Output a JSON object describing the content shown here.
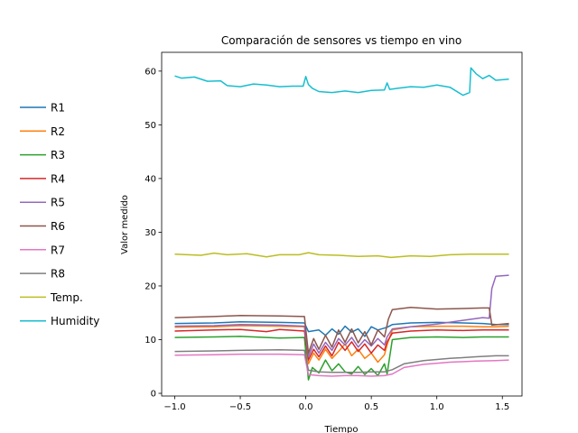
{
  "chart_data": {
    "type": "line",
    "title": "Comparación de sensores vs tiempo en vino",
    "xlabel": "Tiempo",
    "ylabel": "Valor medido",
    "xlim": [
      -1.1,
      1.65
    ],
    "ylim": [
      -0.5,
      63.5
    ],
    "xticks": [
      -1.0,
      -0.5,
      0.0,
      0.5,
      1.0,
      1.5
    ],
    "xtick_labels": [
      "−1.0",
      "−0.5",
      "0.0",
      "0.5",
      "1.0",
      "1.5"
    ],
    "yticks": [
      0,
      10,
      20,
      30,
      40,
      50,
      60
    ],
    "ytick_labels": [
      "0",
      "10",
      "20",
      "30",
      "40",
      "50",
      "60"
    ],
    "grid": false,
    "legend_position": "left, outside plot",
    "series": [
      {
        "name": "R1",
        "color": "#1f77b4",
        "points": [
          [
            -1.0,
            13.0
          ],
          [
            -0.7,
            13.1
          ],
          [
            -0.5,
            13.3
          ],
          [
            -0.2,
            13.2
          ],
          [
            -0.01,
            13.1
          ],
          [
            0.02,
            11.5
          ],
          [
            0.1,
            11.8
          ],
          [
            0.15,
            10.8
          ],
          [
            0.2,
            12.0
          ],
          [
            0.25,
            11.0
          ],
          [
            0.3,
            12.5
          ],
          [
            0.35,
            11.4
          ],
          [
            0.4,
            12.0
          ],
          [
            0.45,
            10.6
          ],
          [
            0.5,
            12.4
          ],
          [
            0.55,
            11.8
          ],
          [
            0.62,
            12.3
          ],
          [
            0.66,
            12.8
          ],
          [
            0.8,
            13.1
          ],
          [
            1.0,
            13.2
          ],
          [
            1.2,
            13.1
          ],
          [
            1.35,
            13.0
          ],
          [
            1.45,
            12.8
          ],
          [
            1.55,
            12.8
          ]
        ]
      },
      {
        "name": "R2",
        "color": "#ff7f0e",
        "points": [
          [
            -1.0,
            12.3
          ],
          [
            -0.7,
            12.4
          ],
          [
            -0.5,
            12.6
          ],
          [
            -0.2,
            12.5
          ],
          [
            -0.01,
            12.4
          ],
          [
            0.02,
            5.5
          ],
          [
            0.06,
            7.5
          ],
          [
            0.1,
            6.2
          ],
          [
            0.15,
            8.2
          ],
          [
            0.2,
            6.5
          ],
          [
            0.25,
            7.8
          ],
          [
            0.3,
            9.2
          ],
          [
            0.35,
            7.0
          ],
          [
            0.4,
            8.2
          ],
          [
            0.45,
            6.5
          ],
          [
            0.5,
            7.5
          ],
          [
            0.55,
            5.8
          ],
          [
            0.6,
            7.2
          ],
          [
            0.62,
            9.0
          ],
          [
            0.66,
            11.8
          ],
          [
            0.8,
            12.4
          ],
          [
            1.0,
            12.5
          ],
          [
            1.2,
            12.5
          ],
          [
            1.35,
            12.4
          ],
          [
            1.45,
            12.4
          ],
          [
            1.55,
            12.5
          ]
        ]
      },
      {
        "name": "R3",
        "color": "#2ca02c",
        "points": [
          [
            -1.0,
            10.4
          ],
          [
            -0.7,
            10.5
          ],
          [
            -0.5,
            10.6
          ],
          [
            -0.2,
            10.3
          ],
          [
            -0.01,
            10.4
          ],
          [
            0.02,
            2.5
          ],
          [
            0.05,
            4.8
          ],
          [
            0.1,
            3.8
          ],
          [
            0.15,
            6.2
          ],
          [
            0.2,
            4.2
          ],
          [
            0.25,
            5.5
          ],
          [
            0.3,
            4.0
          ],
          [
            0.35,
            3.6
          ],
          [
            0.4,
            5.0
          ],
          [
            0.45,
            3.5
          ],
          [
            0.5,
            4.6
          ],
          [
            0.55,
            3.3
          ],
          [
            0.6,
            5.5
          ],
          [
            0.62,
            3.6
          ],
          [
            0.66,
            10.0
          ],
          [
            0.8,
            10.4
          ],
          [
            1.0,
            10.5
          ],
          [
            1.2,
            10.4
          ],
          [
            1.35,
            10.5
          ],
          [
            1.45,
            10.5
          ],
          [
            1.55,
            10.5
          ]
        ]
      },
      {
        "name": "R4",
        "color": "#d62728",
        "points": [
          [
            -1.0,
            11.6
          ],
          [
            -0.7,
            11.8
          ],
          [
            -0.5,
            11.9
          ],
          [
            -0.3,
            11.5
          ],
          [
            -0.2,
            11.9
          ],
          [
            -0.01,
            11.6
          ],
          [
            0.02,
            6.2
          ],
          [
            0.06,
            8.2
          ],
          [
            0.1,
            6.8
          ],
          [
            0.15,
            8.8
          ],
          [
            0.2,
            7.0
          ],
          [
            0.25,
            9.5
          ],
          [
            0.3,
            8.0
          ],
          [
            0.35,
            9.6
          ],
          [
            0.4,
            7.8
          ],
          [
            0.45,
            9.2
          ],
          [
            0.5,
            7.5
          ],
          [
            0.55,
            9.0
          ],
          [
            0.6,
            8.0
          ],
          [
            0.62,
            9.6
          ],
          [
            0.66,
            11.2
          ],
          [
            0.8,
            11.6
          ],
          [
            1.0,
            11.8
          ],
          [
            1.2,
            11.7
          ],
          [
            1.35,
            11.8
          ],
          [
            1.45,
            11.8
          ],
          [
            1.55,
            11.8
          ]
        ]
      },
      {
        "name": "R5",
        "color": "#9467bd",
        "points": [
          [
            -1.0,
            12.5
          ],
          [
            -0.7,
            12.6
          ],
          [
            -0.5,
            12.8
          ],
          [
            -0.2,
            12.7
          ],
          [
            -0.01,
            12.5
          ],
          [
            0.02,
            6.8
          ],
          [
            0.06,
            9.2
          ],
          [
            0.1,
            7.5
          ],
          [
            0.15,
            9.5
          ],
          [
            0.2,
            8.0
          ],
          [
            0.25,
            10.2
          ],
          [
            0.3,
            9.0
          ],
          [
            0.35,
            10.4
          ],
          [
            0.4,
            8.6
          ],
          [
            0.45,
            10.0
          ],
          [
            0.5,
            8.8
          ],
          [
            0.55,
            10.2
          ],
          [
            0.6,
            9.0
          ],
          [
            0.62,
            10.5
          ],
          [
            0.66,
            12.0
          ],
          [
            0.8,
            12.4
          ],
          [
            1.0,
            12.9
          ],
          [
            1.2,
            13.6
          ],
          [
            1.35,
            14.1
          ],
          [
            1.4,
            14.0
          ],
          [
            1.42,
            19.5
          ],
          [
            1.45,
            21.8
          ],
          [
            1.55,
            22.0
          ]
        ]
      },
      {
        "name": "R6",
        "color": "#8c564b",
        "points": [
          [
            -1.0,
            14.1
          ],
          [
            -0.7,
            14.3
          ],
          [
            -0.5,
            14.5
          ],
          [
            -0.2,
            14.4
          ],
          [
            -0.01,
            14.3
          ],
          [
            0.02,
            7.5
          ],
          [
            0.06,
            10.2
          ],
          [
            0.1,
            8.2
          ],
          [
            0.15,
            10.8
          ],
          [
            0.2,
            8.6
          ],
          [
            0.25,
            11.8
          ],
          [
            0.3,
            9.5
          ],
          [
            0.35,
            12.0
          ],
          [
            0.4,
            9.4
          ],
          [
            0.45,
            11.5
          ],
          [
            0.5,
            9.0
          ],
          [
            0.55,
            11.8
          ],
          [
            0.6,
            10.5
          ],
          [
            0.63,
            13.8
          ],
          [
            0.66,
            15.6
          ],
          [
            0.8,
            16.0
          ],
          [
            1.0,
            15.7
          ],
          [
            1.2,
            15.8
          ],
          [
            1.35,
            15.9
          ],
          [
            1.4,
            15.9
          ],
          [
            1.42,
            12.7
          ],
          [
            1.55,
            13.0
          ]
        ]
      },
      {
        "name": "R7",
        "color": "#e377c2",
        "points": [
          [
            -1.0,
            7.1
          ],
          [
            -0.7,
            7.2
          ],
          [
            -0.5,
            7.3
          ],
          [
            -0.2,
            7.3
          ],
          [
            -0.01,
            7.2
          ],
          [
            0.02,
            3.5
          ],
          [
            0.1,
            3.3
          ],
          [
            0.2,
            3.2
          ],
          [
            0.3,
            3.3
          ],
          [
            0.4,
            3.3
          ],
          [
            0.5,
            3.2
          ],
          [
            0.6,
            3.3
          ],
          [
            0.66,
            3.6
          ],
          [
            0.75,
            4.8
          ],
          [
            0.9,
            5.4
          ],
          [
            1.1,
            5.8
          ],
          [
            1.3,
            6.0
          ],
          [
            1.45,
            6.1
          ],
          [
            1.55,
            6.2
          ]
        ]
      },
      {
        "name": "R8",
        "color": "#7f7f7f",
        "points": [
          [
            -1.0,
            7.8
          ],
          [
            -0.7,
            7.9
          ],
          [
            -0.5,
            8.0
          ],
          [
            -0.2,
            8.1
          ],
          [
            -0.01,
            8.0
          ],
          [
            0.02,
            4.3
          ],
          [
            0.1,
            4.0
          ],
          [
            0.2,
            3.9
          ],
          [
            0.3,
            3.9
          ],
          [
            0.4,
            3.9
          ],
          [
            0.5,
            4.0
          ],
          [
            0.6,
            4.0
          ],
          [
            0.66,
            4.4
          ],
          [
            0.75,
            5.5
          ],
          [
            0.9,
            6.1
          ],
          [
            1.1,
            6.5
          ],
          [
            1.3,
            6.8
          ],
          [
            1.45,
            7.0
          ],
          [
            1.55,
            7.0
          ]
        ]
      },
      {
        "name": "Temp.",
        "color": "#bcbd22",
        "points": [
          [
            -1.0,
            25.9
          ],
          [
            -0.8,
            25.7
          ],
          [
            -0.7,
            26.1
          ],
          [
            -0.6,
            25.8
          ],
          [
            -0.45,
            26.0
          ],
          [
            -0.3,
            25.4
          ],
          [
            -0.2,
            25.8
          ],
          [
            -0.05,
            25.8
          ],
          [
            0.02,
            26.2
          ],
          [
            0.1,
            25.8
          ],
          [
            0.25,
            25.7
          ],
          [
            0.4,
            25.5
          ],
          [
            0.55,
            25.6
          ],
          [
            0.65,
            25.3
          ],
          [
            0.8,
            25.6
          ],
          [
            0.95,
            25.5
          ],
          [
            1.1,
            25.8
          ],
          [
            1.25,
            25.9
          ],
          [
            1.4,
            25.9
          ],
          [
            1.55,
            25.9
          ]
        ]
      },
      {
        "name": "Humidity",
        "color": "#17becf",
        "points": [
          [
            -1.0,
            59.1
          ],
          [
            -0.95,
            58.7
          ],
          [
            -0.85,
            58.9
          ],
          [
            -0.75,
            58.1
          ],
          [
            -0.65,
            58.2
          ],
          [
            -0.6,
            57.3
          ],
          [
            -0.5,
            57.1
          ],
          [
            -0.4,
            57.6
          ],
          [
            -0.3,
            57.4
          ],
          [
            -0.2,
            57.1
          ],
          [
            -0.1,
            57.2
          ],
          [
            -0.02,
            57.2
          ],
          [
            0.0,
            59.0
          ],
          [
            0.02,
            57.5
          ],
          [
            0.05,
            56.8
          ],
          [
            0.1,
            56.2
          ],
          [
            0.2,
            56.0
          ],
          [
            0.3,
            56.3
          ],
          [
            0.4,
            56.0
          ],
          [
            0.5,
            56.4
          ],
          [
            0.6,
            56.5
          ],
          [
            0.62,
            57.8
          ],
          [
            0.64,
            56.6
          ],
          [
            0.7,
            56.8
          ],
          [
            0.8,
            57.1
          ],
          [
            0.9,
            57.0
          ],
          [
            1.0,
            57.4
          ],
          [
            1.1,
            57.0
          ],
          [
            1.2,
            55.5
          ],
          [
            1.25,
            56.0
          ],
          [
            1.26,
            60.6
          ],
          [
            1.3,
            59.5
          ],
          [
            1.35,
            58.6
          ],
          [
            1.4,
            59.2
          ],
          [
            1.45,
            58.3
          ],
          [
            1.55,
            58.5
          ]
        ]
      }
    ]
  }
}
